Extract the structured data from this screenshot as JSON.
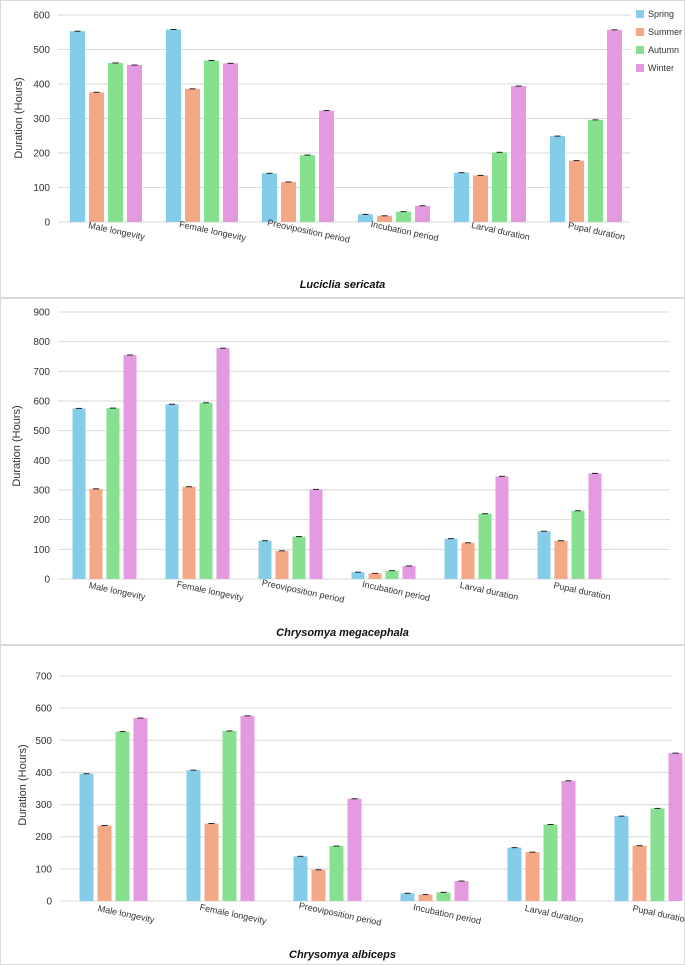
{
  "colors": {
    "Spring": "#85cce8",
    "Summer": "#f4a886",
    "Autumn": "#87e08f",
    "Winter": "#e49ae0"
  },
  "chart_data": [
    {
      "type": "bar",
      "title": "Luciclia sericata",
      "ylabel": "Duration (Hours)",
      "xlabel": "",
      "ylim": [
        0,
        600
      ],
      "yticks": [
        0,
        100,
        200,
        300,
        400,
        500,
        600
      ],
      "legend": "right",
      "categories": [
        "Male longevity",
        "Female longevity",
        "Preoviposition period",
        "Incubation period",
        "Larval duration",
        "Pupal duration"
      ],
      "series": [
        {
          "name": "Spring",
          "values": [
            553,
            558,
            141,
            22,
            143,
            249
          ]
        },
        {
          "name": "Summer",
          "values": [
            376,
            386,
            116,
            18,
            135,
            178
          ]
        },
        {
          "name": "Autumn",
          "values": [
            461,
            468,
            194,
            30,
            202,
            296
          ]
        },
        {
          "name": "Winter",
          "values": [
            455,
            460,
            323,
            47,
            394,
            557
          ]
        }
      ]
    },
    {
      "type": "bar",
      "title": "Chrysomya megacephala",
      "ylabel": "Duration (Hours)",
      "xlabel": "",
      "ylim": [
        0,
        900
      ],
      "yticks": [
        0,
        100,
        200,
        300,
        400,
        500,
        600,
        700,
        800,
        900
      ],
      "legend": "none",
      "categories": [
        "Male longevity",
        "Female longevity",
        "Preoviposition period",
        "Incubation period",
        "Larval duration",
        "Pupal duration"
      ],
      "series": [
        {
          "name": "Spring",
          "values": [
            575,
            589,
            129,
            23,
            136,
            161
          ]
        },
        {
          "name": "Summer",
          "values": [
            304,
            311,
            95,
            19,
            122,
            129
          ]
        },
        {
          "name": "Autumn",
          "values": [
            576,
            594,
            143,
            28,
            220,
            230
          ]
        },
        {
          "name": "Winter",
          "values": [
            755,
            778,
            302,
            44,
            346,
            356
          ]
        }
      ]
    },
    {
      "type": "bar",
      "title": "Chrysomya albiceps",
      "ylabel": "Duration (Hours)",
      "xlabel": "",
      "ylim": [
        0,
        700
      ],
      "yticks": [
        0,
        100,
        200,
        300,
        400,
        500,
        600,
        700
      ],
      "legend": "none",
      "categories": [
        "Male longevity",
        "Female longevity",
        "Preoviposition period",
        "Incubation period",
        "Larval duration",
        "Pupal duration"
      ],
      "series": [
        {
          "name": "Spring",
          "values": [
            396,
            407,
            139,
            24,
            166,
            264
          ]
        },
        {
          "name": "Summer",
          "values": [
            235,
            241,
            97,
            20,
            152,
            172
          ]
        },
        {
          "name": "Autumn",
          "values": [
            527,
            529,
            171,
            27,
            238,
            288
          ]
        },
        {
          "name": "Winter",
          "values": [
            569,
            576,
            318,
            62,
            374,
            460
          ]
        }
      ]
    }
  ]
}
